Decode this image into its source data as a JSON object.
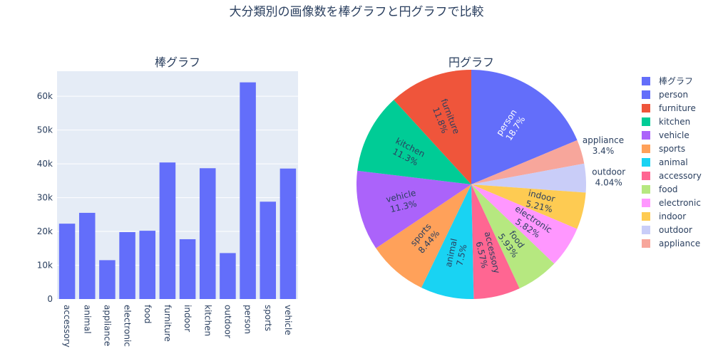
{
  "figure": {
    "title": "大分類別の画像数を棒グラフと円グラフで比較"
  },
  "chart_data": [
    {
      "type": "bar",
      "title": "棒グラフ",
      "categories": [
        "accessory",
        "animal",
        "appliance",
        "electronic",
        "food",
        "furniture",
        "indoor",
        "kitchen",
        "outdoor",
        "person",
        "sports",
        "vehicle"
      ],
      "values": [
        22300,
        25500,
        11500,
        19800,
        20200,
        40400,
        17700,
        38700,
        13600,
        64100,
        28800,
        38600
      ],
      "yticks": [
        "0",
        "10k",
        "20k",
        "30k",
        "40k",
        "50k",
        "60k"
      ],
      "ylim": [
        0,
        67400
      ],
      "color": "#636efa",
      "grid": true
    },
    {
      "type": "pie",
      "title": "円グラフ",
      "slices": [
        {
          "label": "person",
          "percent_text": "18.7%",
          "value": 18.7,
          "color": "#636efa",
          "text_inside": true
        },
        {
          "label": "appliance",
          "percent_text": "3.4%",
          "value": 3.4,
          "color": "#f7a69b",
          "text_inside": false
        },
        {
          "label": "outdoor",
          "percent_text": "4.04%",
          "value": 4.04,
          "color": "#c9cdf8",
          "text_inside": false
        },
        {
          "label": "indoor",
          "percent_text": "5.21%",
          "value": 5.21,
          "color": "#fecb52",
          "text_inside": true
        },
        {
          "label": "electronic",
          "percent_text": "5.82%",
          "value": 5.82,
          "color": "#ff97ff",
          "text_inside": true
        },
        {
          "label": "food",
          "percent_text": "5.93%",
          "value": 5.93,
          "color": "#b6e880",
          "text_inside": true
        },
        {
          "label": "accessory",
          "percent_text": "6.57%",
          "value": 6.57,
          "color": "#ff6692",
          "text_inside": true
        },
        {
          "label": "animal",
          "percent_text": "7.5%",
          "value": 7.5,
          "color": "#19d3f3",
          "text_inside": true
        },
        {
          "label": "sports",
          "percent_text": "8.44%",
          "value": 8.44,
          "color": "#ffa15a",
          "text_inside": true
        },
        {
          "label": "vehicle",
          "percent_text": "11.3%",
          "value": 11.3,
          "color": "#ab63fa",
          "text_inside": true
        },
        {
          "label": "kitchen",
          "percent_text": "11.3%",
          "value": 11.3,
          "color": "#00cc96",
          "text_inside": true
        },
        {
          "label": "furniture",
          "percent_text": "11.8%",
          "value": 11.8,
          "color": "#ef553b",
          "text_inside": true
        }
      ],
      "direction": "clockwise",
      "start": "top"
    }
  ],
  "legend": {
    "placement": "right",
    "items": [
      {
        "label": "棒グラフ",
        "color": "#636efa"
      },
      {
        "label": "person",
        "color": "#636efa"
      },
      {
        "label": "furniture",
        "color": "#ef553b"
      },
      {
        "label": "kitchen",
        "color": "#00cc96"
      },
      {
        "label": "vehicle",
        "color": "#ab63fa"
      },
      {
        "label": "sports",
        "color": "#ffa15a"
      },
      {
        "label": "animal",
        "color": "#19d3f3"
      },
      {
        "label": "accessory",
        "color": "#ff6692"
      },
      {
        "label": "food",
        "color": "#b6e880"
      },
      {
        "label": "electronic",
        "color": "#ff97ff"
      },
      {
        "label": "indoor",
        "color": "#fecb52"
      },
      {
        "label": "outdoor",
        "color": "#c9cdf8"
      },
      {
        "label": "appliance",
        "color": "#f7a69b"
      }
    ]
  }
}
